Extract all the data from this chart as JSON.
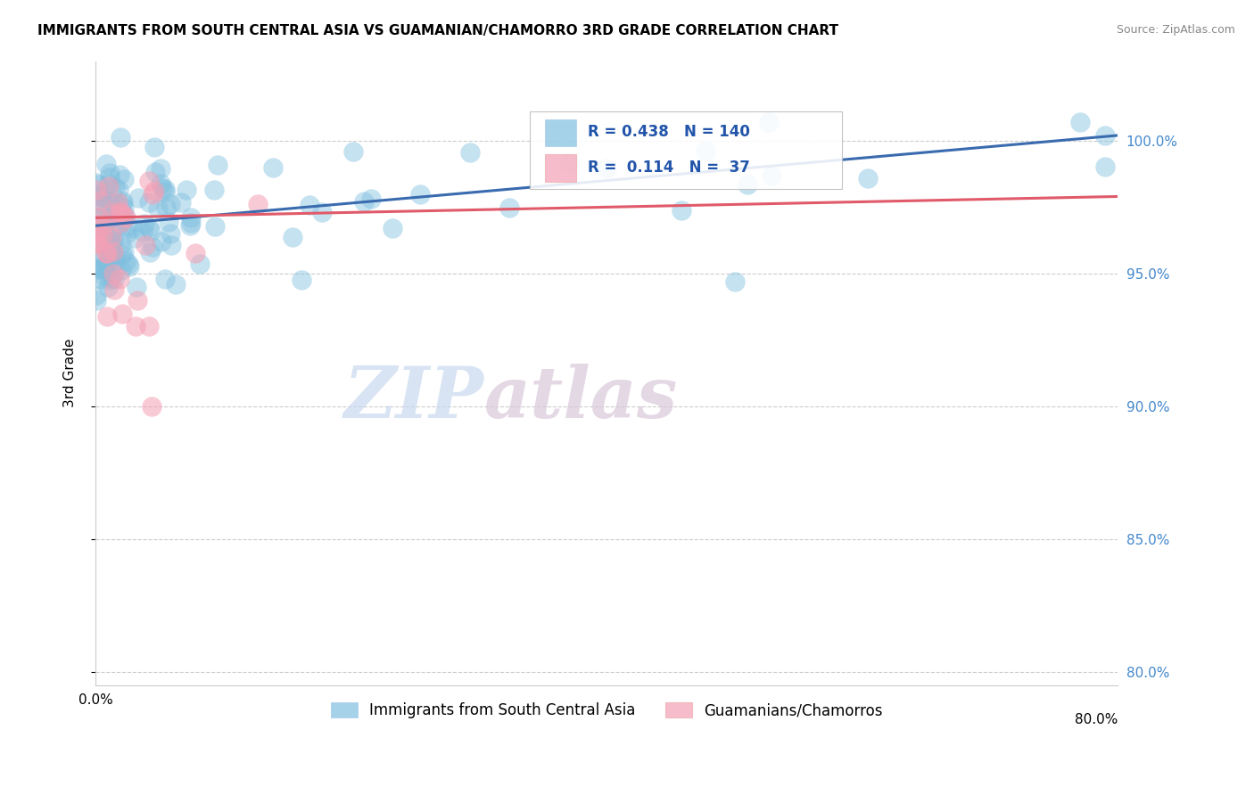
{
  "title": "IMMIGRANTS FROM SOUTH CENTRAL ASIA VS GUAMANIAN/CHAMORRO 3RD GRADE CORRELATION CHART",
  "source_text": "Source: ZipAtlas.com",
  "ylabel": "3rd Grade",
  "watermark_zip": "ZIP",
  "watermark_atlas": "atlas",
  "legend_label_blue": "Immigrants from South Central Asia",
  "legend_label_pink": "Guamanians/Chamorros",
  "blue_R": 0.438,
  "blue_N": 140,
  "pink_R": 0.114,
  "pink_N": 37,
  "blue_color": "#7fbfdf",
  "pink_color": "#f4a0b5",
  "blue_line_color": "#3a6baf",
  "pink_line_color": "#e05a6a",
  "xmin": 0.0,
  "xmax": 0.82,
  "ymin": 0.795,
  "ymax": 1.03,
  "yticks": [
    0.8,
    0.85,
    0.9,
    0.95,
    1.0
  ],
  "ytick_labels": [
    "80.0%",
    "85.0%",
    "90.0%",
    "95.0%",
    "100.0%"
  ],
  "blue_line_x0": 0.0,
  "blue_line_y0": 0.968,
  "blue_line_x1": 0.82,
  "blue_line_y1": 1.002,
  "pink_line_x0": 0.0,
  "pink_line_y0": 0.971,
  "pink_line_x1": 0.82,
  "pink_line_y1": 0.979
}
